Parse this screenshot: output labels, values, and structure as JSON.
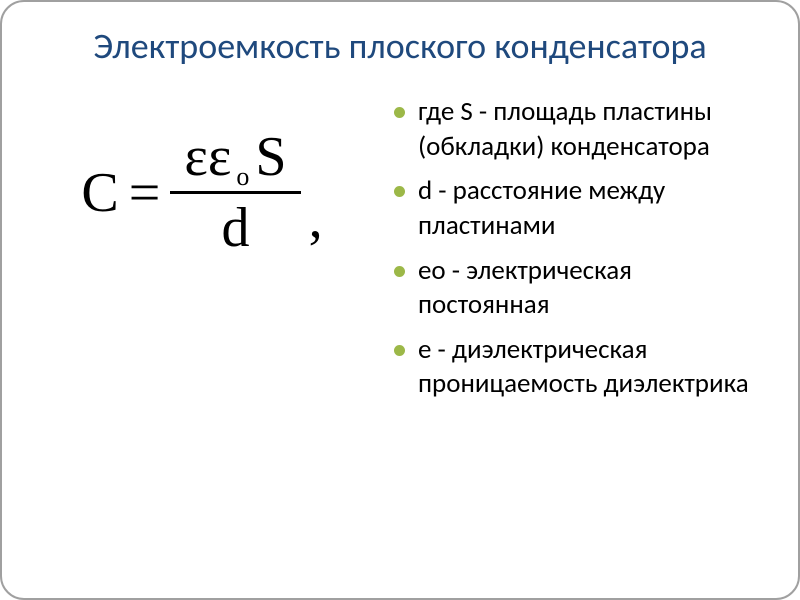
{
  "colors": {
    "title": "#1f497d",
    "bullet": "#9cb848",
    "text": "#000000",
    "border": "#a0a0a0"
  },
  "title": "Электроемкость плоского конденсатора",
  "formula": {
    "lhs": "C",
    "eq": "=",
    "num_eps1": "ε",
    "num_eps2": "ε",
    "num_sub": "о",
    "num_s": "S",
    "den": "d",
    "trail": ","
  },
  "items": [
    "где S - площадь пластины (обкладки) конденсатора",
    " d - расстояние между пластинами",
    " ео - электрическая постоянная",
    " е - диэлектрическая проницаемость диэлектрика"
  ]
}
